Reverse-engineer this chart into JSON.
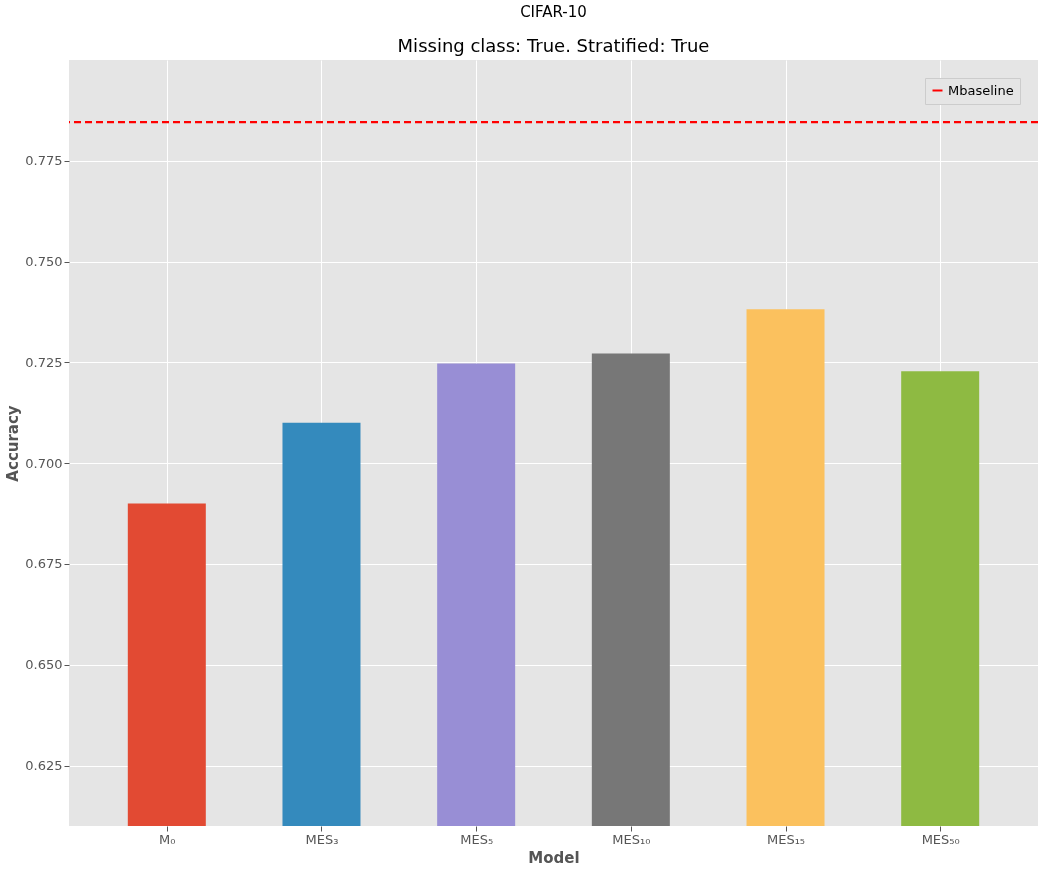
{
  "chart_data": {
    "type": "bar",
    "title": "CIFAR-10",
    "subtitle": "Missing class: True. Stratified: True",
    "xlabel": "Model",
    "ylabel": "Accuracy",
    "categories": [
      "M₀",
      "MES₃",
      "MES₅",
      "MES₁₀",
      "MES₁₅",
      "MES₅₀"
    ],
    "values": [
      0.69,
      0.71,
      0.7247,
      0.7272,
      0.7382,
      0.7228
    ],
    "colors": [
      "#e24a33",
      "#348abd",
      "#988ed5",
      "#777777",
      "#fbc15e",
      "#8eba42"
    ],
    "ylim": [
      0.61,
      0.8
    ],
    "yticks": [
      0.625,
      {
        "value": 0.65,
        "label": "0.650"
      },
      0.675,
      {
        "value": 0.7,
        "label": "0.700"
      },
      0.725,
      {
        "value": 0.75,
        "label": "0.750"
      },
      0.775
    ],
    "ref_lines": [
      {
        "axis": "y",
        "value": 0.7846,
        "label": "Mbaseline",
        "color": "#ff0000",
        "line_style": "dashed"
      }
    ],
    "grid": true,
    "legend": "top right"
  }
}
